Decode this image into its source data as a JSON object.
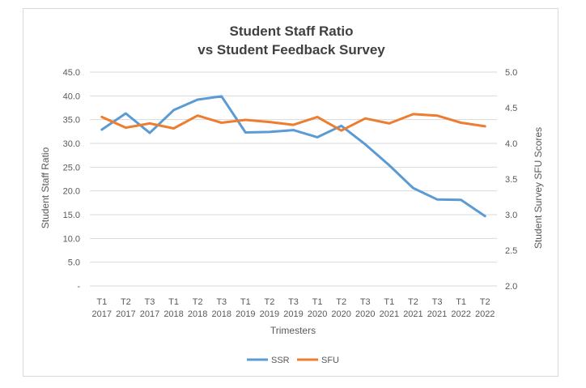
{
  "chart_data": {
    "type": "line",
    "title_lines": [
      "Student Staff Ratio",
      "vs Student Feedback Survey"
    ],
    "xlabel": "Trimesters",
    "ylabel_left": "Student Staff Ratio",
    "ylabel_right": "Student Survey SFU Scores",
    "categories": [
      [
        "T1",
        "2017"
      ],
      [
        "T2",
        "2017"
      ],
      [
        "T3",
        "2017"
      ],
      [
        "T1",
        "2018"
      ],
      [
        "T2",
        "2018"
      ],
      [
        "T3",
        "2018"
      ],
      [
        "T1",
        "2019"
      ],
      [
        "T2",
        "2019"
      ],
      [
        "T3",
        "2019"
      ],
      [
        "T1",
        "2020"
      ],
      [
        "T2",
        "2020"
      ],
      [
        "T3",
        "2020"
      ],
      [
        "T1",
        "2021"
      ],
      [
        "T2",
        "2021"
      ],
      [
        "T3",
        "2021"
      ],
      [
        "T1",
        "2022"
      ],
      [
        "T2",
        "2022"
      ]
    ],
    "ylim_left": [
      0,
      45
    ],
    "yticks_left": [
      "-",
      "5.0",
      "10.0",
      "15.0",
      "20.0",
      "25.0",
      "30.0",
      "35.0",
      "40.0",
      "45.0"
    ],
    "ylim_right": [
      2.0,
      5.0
    ],
    "yticks_right": [
      "2.0",
      "2.5",
      "3.0",
      "3.5",
      "4.0",
      "4.5",
      "5.0"
    ],
    "grid": true,
    "legend_position": "bottom",
    "series": [
      {
        "name": "SSR",
        "axis": "left",
        "color": "#5b9bd5",
        "values": [
          32.9,
          36.3,
          32.2,
          37.0,
          39.2,
          39.9,
          32.3,
          32.4,
          32.8,
          31.3,
          33.7,
          29.8,
          25.4,
          20.6,
          18.2,
          18.1,
          14.7
        ]
      },
      {
        "name": "SFU",
        "axis": "right",
        "color": "#ed7d31",
        "values": [
          4.37,
          4.22,
          4.28,
          4.21,
          4.39,
          4.29,
          4.33,
          4.3,
          4.26,
          4.37,
          4.18,
          4.35,
          4.28,
          4.41,
          4.39,
          4.29,
          4.24
        ]
      }
    ]
  }
}
